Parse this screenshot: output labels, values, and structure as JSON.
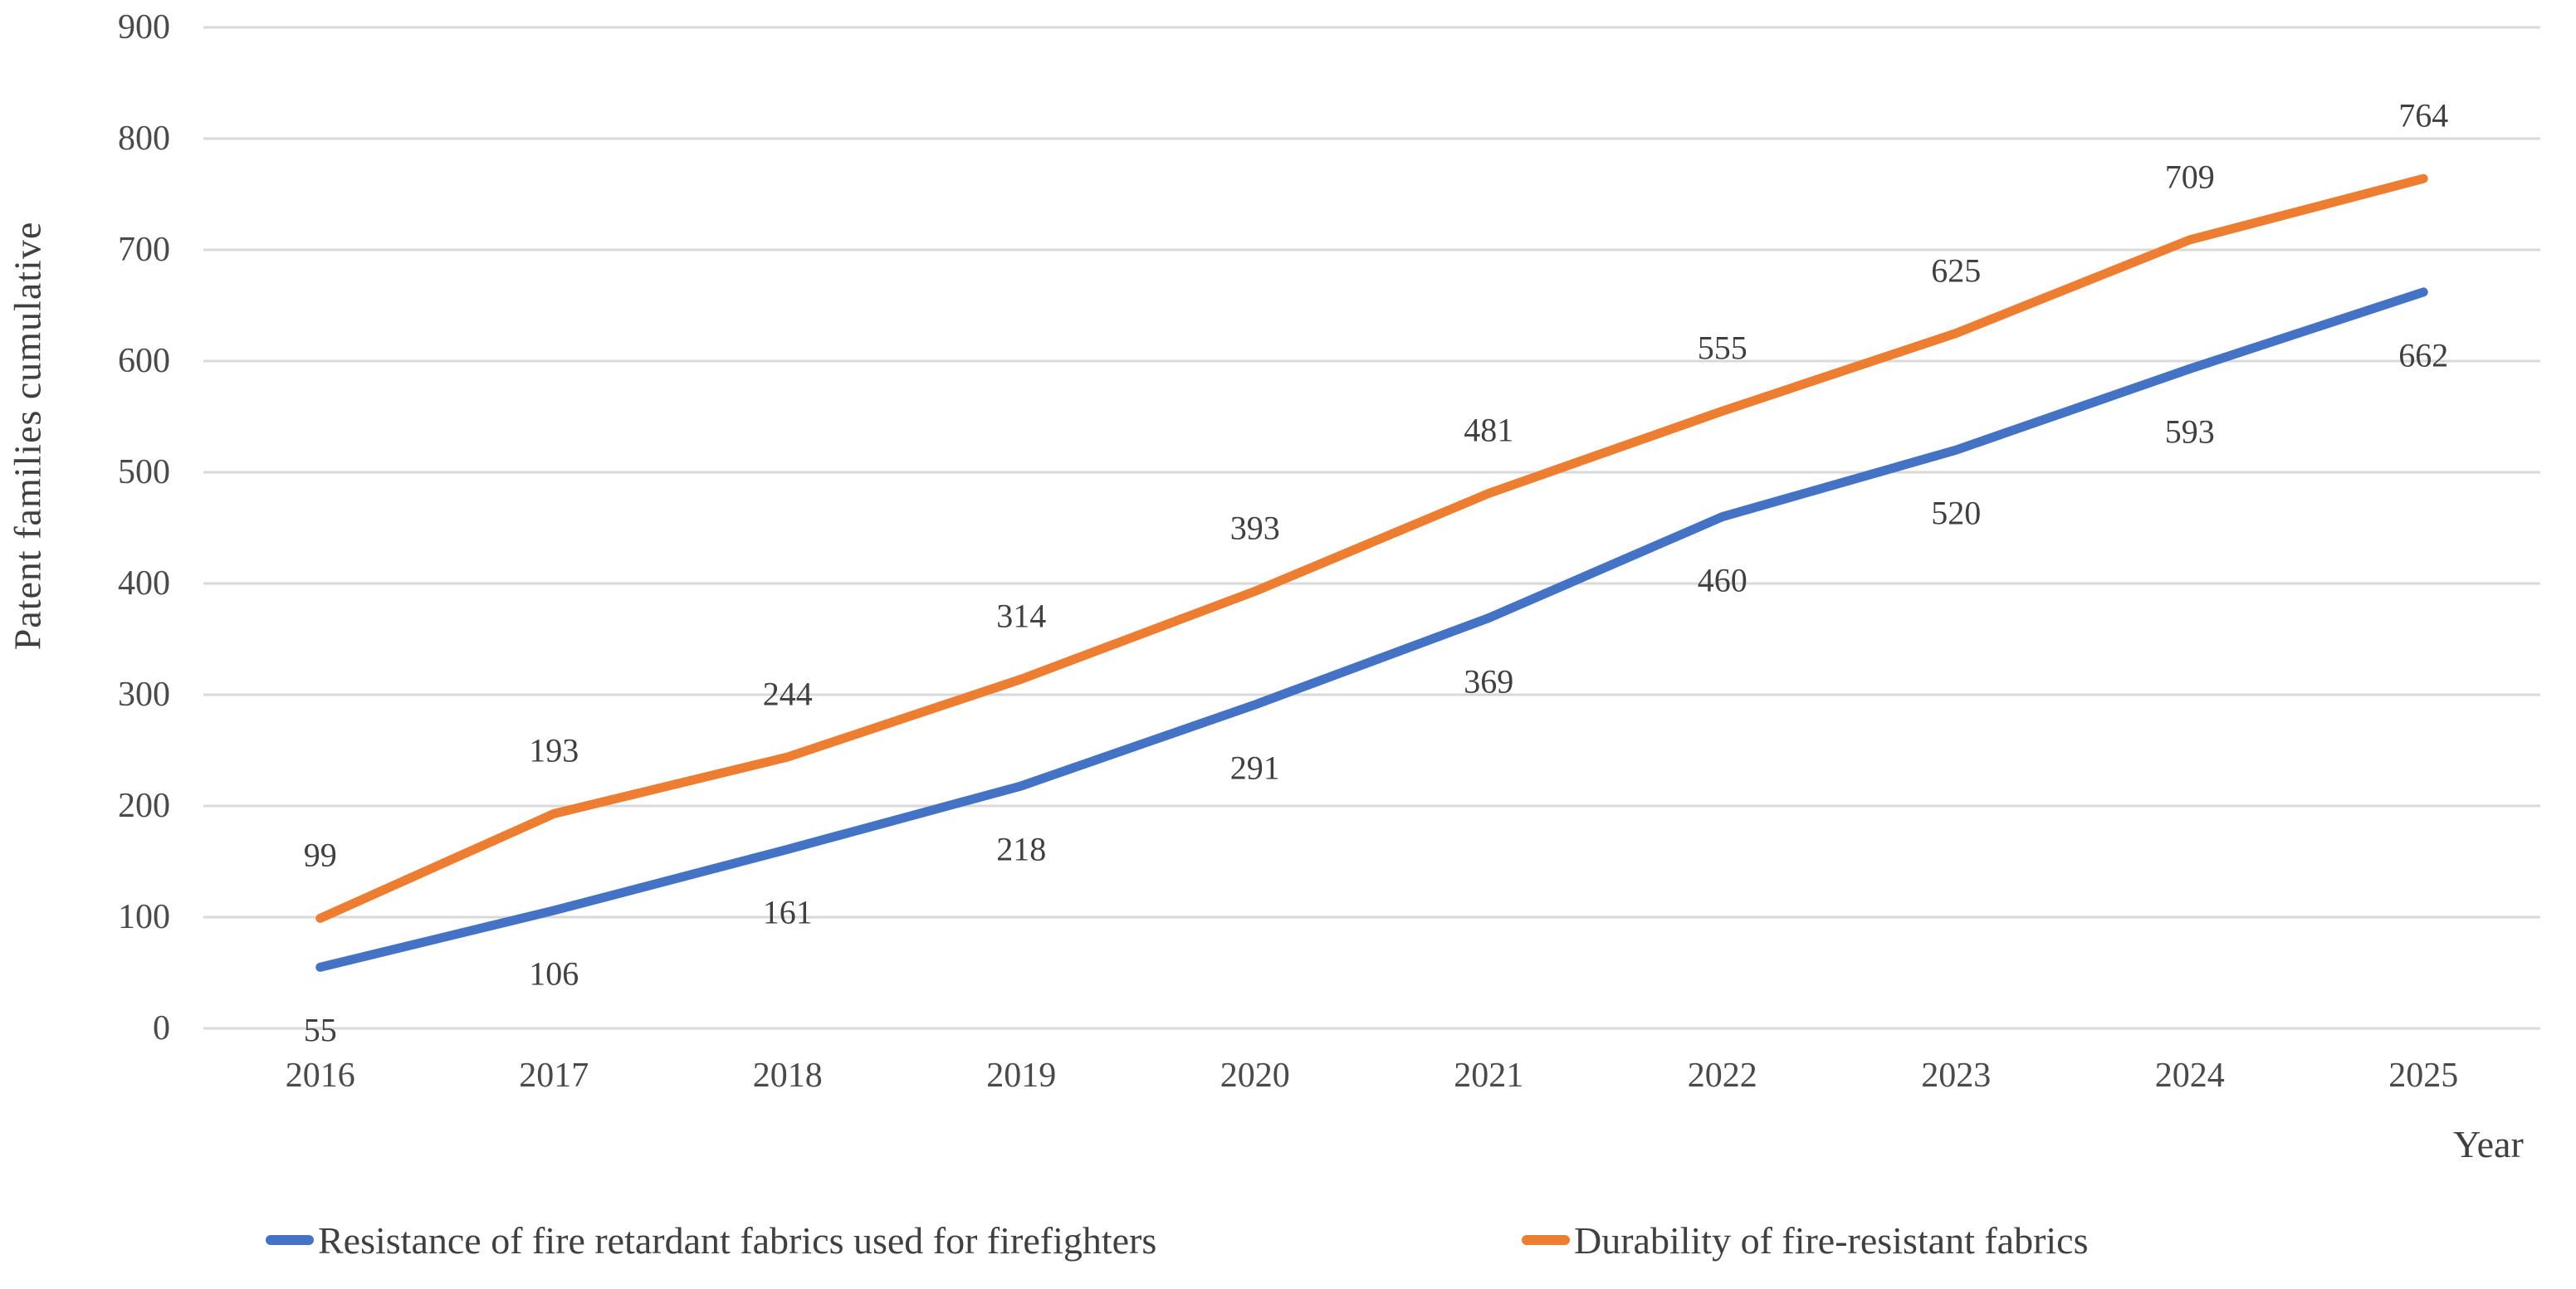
{
  "chart_data": {
    "type": "line",
    "title": "",
    "xlabel": "Year",
    "ylabel": "Patent families cumulative",
    "categories": [
      "2016",
      "2017",
      "2018",
      "2019",
      "2020",
      "2021",
      "2022",
      "2023",
      "2024",
      "2025"
    ],
    "series": [
      {
        "name": "Resistance of fire retardant fabrics used for firefighters",
        "color": "#4472C4",
        "values": [
          55,
          106,
          161,
          218,
          291,
          369,
          460,
          520,
          593,
          662
        ],
        "label_side": "below"
      },
      {
        "name": "Durability of fire-resistant fabrics",
        "color": "#ED7D31",
        "values": [
          99,
          193,
          244,
          314,
          393,
          481,
          555,
          625,
          709,
          764
        ],
        "label_side": "above"
      }
    ],
    "y_ticks": [
      0,
      100,
      200,
      300,
      400,
      500,
      600,
      700,
      800,
      900
    ],
    "ylim": [
      0,
      900
    ],
    "grid": true,
    "grid_color": "#D9D9D9",
    "text_color": "#404040",
    "legend_position": "bottom"
  }
}
